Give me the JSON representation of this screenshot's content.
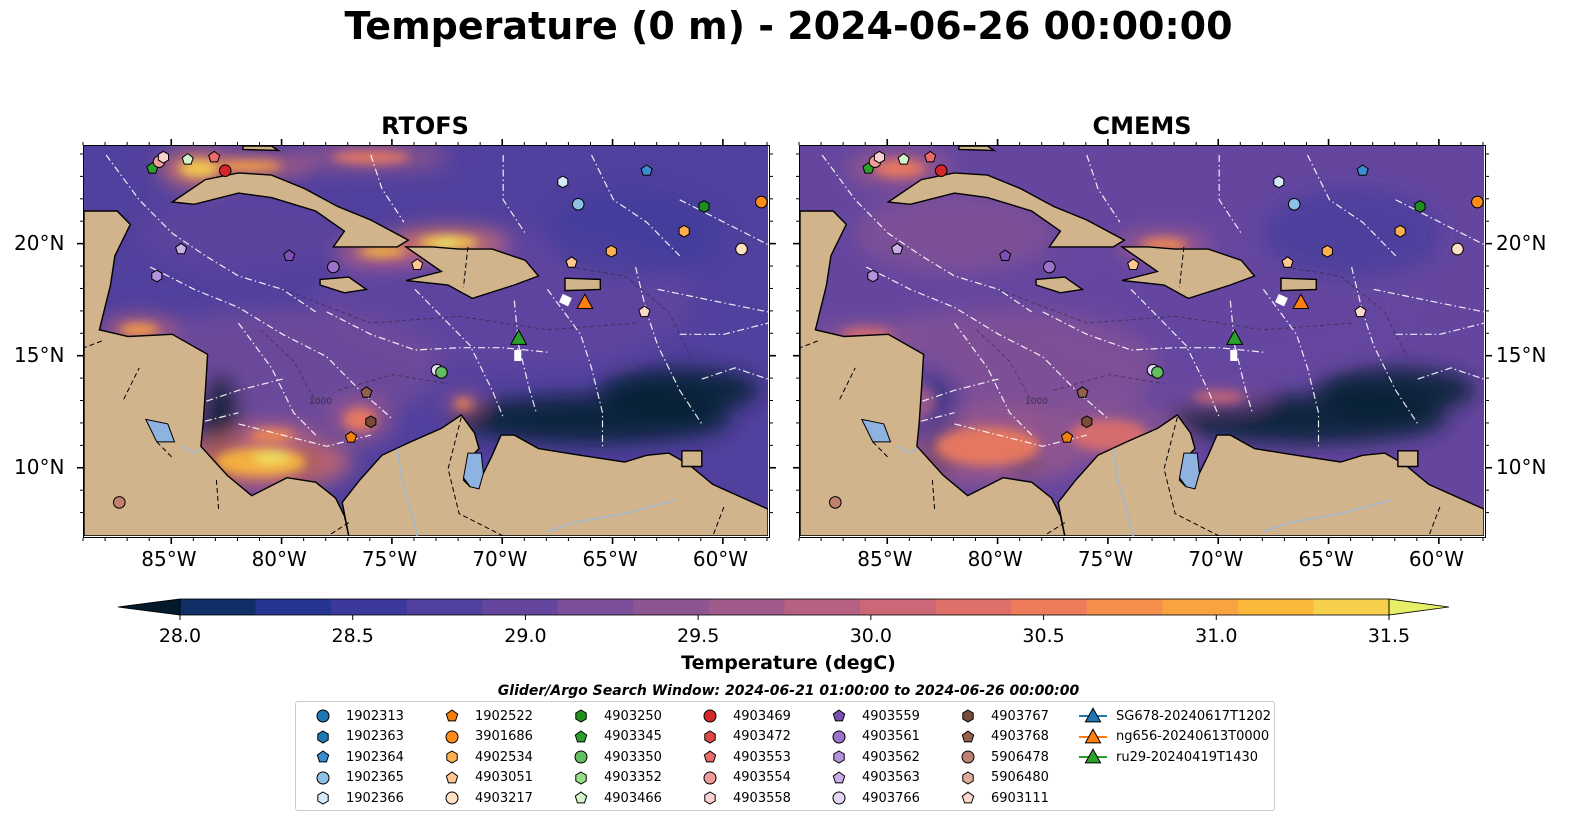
{
  "title": "Temperature (0 m) - 2024-06-26 00:00:00",
  "panels": [
    {
      "title": "RTOFS",
      "variant": "rtofs"
    },
    {
      "title": "CMEMS",
      "variant": "cmems"
    }
  ],
  "map": {
    "lon_range": [
      -89,
      -58
    ],
    "lat_range": [
      7,
      24.4
    ],
    "lon_ticks": [
      "85°W",
      "80°W",
      "75°W",
      "70°W",
      "65°W",
      "60°W"
    ],
    "lon_tick_values": [
      -85,
      -80,
      -75,
      -70,
      -65,
      -60
    ],
    "lat_ticks": [
      "20°N",
      "15°N",
      "10°N"
    ],
    "lat_tick_values": [
      20,
      15,
      10
    ],
    "contour_label": "1000",
    "colors": {
      "land": "#d2b48c",
      "boundaries": "#ffffff",
      "coast": "#000000",
      "lake": "#8fb3e0"
    }
  },
  "colorbar": {
    "title": "Temperature (degC)",
    "range": [
      28.0,
      31.5
    ],
    "extend": "both",
    "ticks": [
      "28.0",
      "28.5",
      "29.0",
      "29.5",
      "30.0",
      "30.5",
      "31.0",
      "31.5"
    ],
    "tick_values": [
      28.0,
      28.5,
      29.0,
      29.5,
      30.0,
      30.5,
      31.0,
      31.5
    ],
    "palette": [
      "#04202e",
      "#0f2f66",
      "#26358f",
      "#3b3a9a",
      "#51409d",
      "#64469f",
      "#7a4e99",
      "#8d5592",
      "#a15b8a",
      "#b66181",
      "#cb6776",
      "#de7069",
      "#ee7c5b",
      "#f68e4c",
      "#f9a340",
      "#fab83a",
      "#f6d04a",
      "#e9ee68"
    ],
    "over_color": "#e9ee68",
    "under_color": "#041a2c"
  },
  "search_window": "Glider/Argo Search Window: 2024-06-21 01:00:00 to 2024-06-26 00:00:00",
  "legend": [
    {
      "label": "1902313",
      "marker": "circle",
      "color": "#1f77b4"
    },
    {
      "label": "1902363",
      "marker": "hexagon",
      "color": "#1f77b4"
    },
    {
      "label": "1902364",
      "marker": "pentagon",
      "color": "#3a8ed0"
    },
    {
      "label": "1902365",
      "marker": "circle",
      "color": "#8ec1e6"
    },
    {
      "label": "1902366",
      "marker": "hexagon",
      "color": "#d6e9f6"
    },
    {
      "label": "1902522",
      "marker": "pentagon",
      "color": "#f07f0e"
    },
    {
      "label": "3901686",
      "marker": "circle",
      "color": "#ff8c1a"
    },
    {
      "label": "4902534",
      "marker": "hexagon",
      "color": "#ffb050"
    },
    {
      "label": "4903051",
      "marker": "pentagon",
      "color": "#ffc890"
    },
    {
      "label": "4903217",
      "marker": "circle",
      "color": "#ffe0c0"
    },
    {
      "label": "4903250",
      "marker": "hexagon",
      "color": "#1d8f1d"
    },
    {
      "label": "4903345",
      "marker": "pentagon",
      "color": "#2ca02c"
    },
    {
      "label": "4903350",
      "marker": "circle",
      "color": "#60c060"
    },
    {
      "label": "4903352",
      "marker": "hexagon",
      "color": "#98df8a"
    },
    {
      "label": "4903466",
      "marker": "pentagon",
      "color": "#d4f5cc"
    },
    {
      "label": "4903469",
      "marker": "circle",
      "color": "#d62728"
    },
    {
      "label": "4903472",
      "marker": "hexagon",
      "color": "#e04848"
    },
    {
      "label": "4903553",
      "marker": "pentagon",
      "color": "#eb6a6a"
    },
    {
      "label": "4903554",
      "marker": "circle",
      "color": "#f29b9b"
    },
    {
      "label": "4903558",
      "marker": "hexagon",
      "color": "#fbd0d0"
    },
    {
      "label": "4903559",
      "marker": "pentagon",
      "color": "#7b4fb5"
    },
    {
      "label": "4903561",
      "marker": "circle",
      "color": "#9c72cc"
    },
    {
      "label": "4903562",
      "marker": "hexagon",
      "color": "#b493dc"
    },
    {
      "label": "4903563",
      "marker": "pentagon",
      "color": "#caaee8"
    },
    {
      "label": "4903766",
      "marker": "circle",
      "color": "#e6d6f5"
    },
    {
      "label": "4903767",
      "marker": "hexagon",
      "color": "#7a4a3a"
    },
    {
      "label": "4903768",
      "marker": "pentagon",
      "color": "#935f4c"
    },
    {
      "label": "5906478",
      "marker": "circle",
      "color": "#c08170"
    },
    {
      "label": "5906480",
      "marker": "hexagon",
      "color": "#e0aa98"
    },
    {
      "label": "6903111",
      "marker": "pentagon",
      "color": "#fbd8cc"
    },
    {
      "label": "SG678-20240617T1202",
      "marker": "triangle-line",
      "color": "#1f77b4"
    },
    {
      "label": "ng656-20240613T0000",
      "marker": "triangle-line",
      "color": "#ff7f0e"
    },
    {
      "label": "ru29-20240419T1430",
      "marker": "triangle-line",
      "color": "#2ca02c"
    }
  ],
  "observations": [
    {
      "id": "4903345",
      "lon": -85.9,
      "lat": 23.4
    },
    {
      "id": "4903554",
      "lon": -85.6,
      "lat": 23.7
    },
    {
      "id": "4903558",
      "lon": -85.4,
      "lat": 23.9
    },
    {
      "id": "4903466",
      "lon": -84.3,
      "lat": 23.8
    },
    {
      "id": "4903553",
      "lon": -83.1,
      "lat": 23.9
    },
    {
      "id": "4903469",
      "lon": -82.6,
      "lat": 23.3
    },
    {
      "id": "4903563",
      "lon": -84.6,
      "lat": 19.8
    },
    {
      "id": "4903562",
      "lon": -85.7,
      "lat": 18.6
    },
    {
      "id": "4903559",
      "lon": -79.7,
      "lat": 19.5
    },
    {
      "id": "4903561",
      "lon": -77.7,
      "lat": 19.0
    },
    {
      "id": "4903051",
      "lon": -73.9,
      "lat": 19.1
    },
    {
      "id": "1902366",
      "lon": -67.3,
      "lat": 22.8
    },
    {
      "id": "1902365",
      "lon": -66.6,
      "lat": 21.8
    },
    {
      "id": "1902364",
      "lon": -63.5,
      "lat": 23.3
    },
    {
      "id": "4903250",
      "lon": -60.9,
      "lat": 21.7
    },
    {
      "id": "4902534",
      "lon": -61.8,
      "lat": 20.6
    },
    {
      "id": "3901686",
      "lon": -58.3,
      "lat": 21.9
    },
    {
      "id": "4903217",
      "lon": -59.2,
      "lat": 19.8
    },
    {
      "id": "4902534",
      "lon": -65.1,
      "lat": 19.7
    },
    {
      "id": "4903051",
      "lon": -66.9,
      "lat": 19.2
    },
    {
      "id": "6903111",
      "lon": -63.6,
      "lat": 17.0
    },
    {
      "id": "4903766",
      "lon": -73.0,
      "lat": 14.4
    },
    {
      "id": "4903350",
      "lon": -72.8,
      "lat": 14.3
    },
    {
      "id": "4903768",
      "lon": -76.2,
      "lat": 13.4
    },
    {
      "id": "4903767",
      "lon": -76.0,
      "lat": 12.1
    },
    {
      "id": "1902522",
      "lon": -76.9,
      "lat": 11.4
    },
    {
      "id": "5906478",
      "lon": -87.4,
      "lat": 8.5
    },
    {
      "id": "ng656-20240613T0000",
      "lon": -66.3,
      "lat": 17.4
    },
    {
      "id": "ru29-20240419T1430",
      "lon": -69.3,
      "lat": 15.8
    }
  ]
}
